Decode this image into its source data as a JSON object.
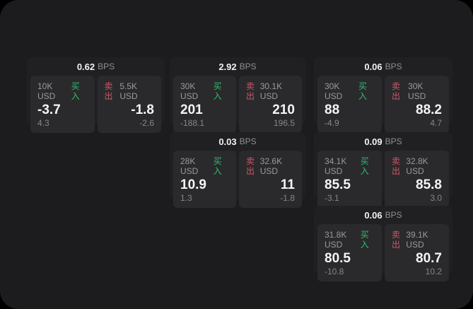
{
  "theme": {
    "outer_bg": "#000000",
    "panel_bg": "#1c1c1e",
    "card_bg": "#202022",
    "tile_bg": "#2a2a2c",
    "buy_color": "#2fbd6e",
    "sell_color": "#d25568",
    "text_primary": "#f2f2f2",
    "text_secondary": "#9a9a9a"
  },
  "labels": {
    "buy": "买入",
    "sell": "卖出",
    "bps_unit": "BPS"
  },
  "cards": [
    {
      "bps": "0.62",
      "buy": {
        "size": "10K USD",
        "main": "-3.7",
        "sub": "4.3"
      },
      "sell": {
        "size": "5.5K USD",
        "main": "-1.8",
        "sub": "-2.6"
      }
    },
    {
      "bps": "2.92",
      "buy": {
        "size": "30K USD",
        "main": "201",
        "sub": "-188.1"
      },
      "sell": {
        "size": "30.1K USD",
        "main": "210",
        "sub": "196.5"
      }
    },
    {
      "bps": "0.06",
      "buy": {
        "size": "30K USD",
        "main": "88",
        "sub": "-4.9"
      },
      "sell": {
        "size": "30K USD",
        "main": "88.2",
        "sub": "4.7"
      }
    },
    {
      "bps": "0.03",
      "buy": {
        "size": "28K USD",
        "main": "10.9",
        "sub": "1.3"
      },
      "sell": {
        "size": "32.6K USD",
        "main": "11",
        "sub": "-1.8"
      }
    },
    {
      "bps": "0.09",
      "buy": {
        "size": "34.1K USD",
        "main": "85.5",
        "sub": "-3.1"
      },
      "sell": {
        "size": "32.8K USD",
        "main": "85.8",
        "sub": "3.0"
      }
    },
    {
      "bps": "0.06",
      "buy": {
        "size": "31.8K USD",
        "main": "80.5",
        "sub": "-10.8"
      },
      "sell": {
        "size": "39.1K USD",
        "main": "80.7",
        "sub": "10.2"
      }
    }
  ]
}
